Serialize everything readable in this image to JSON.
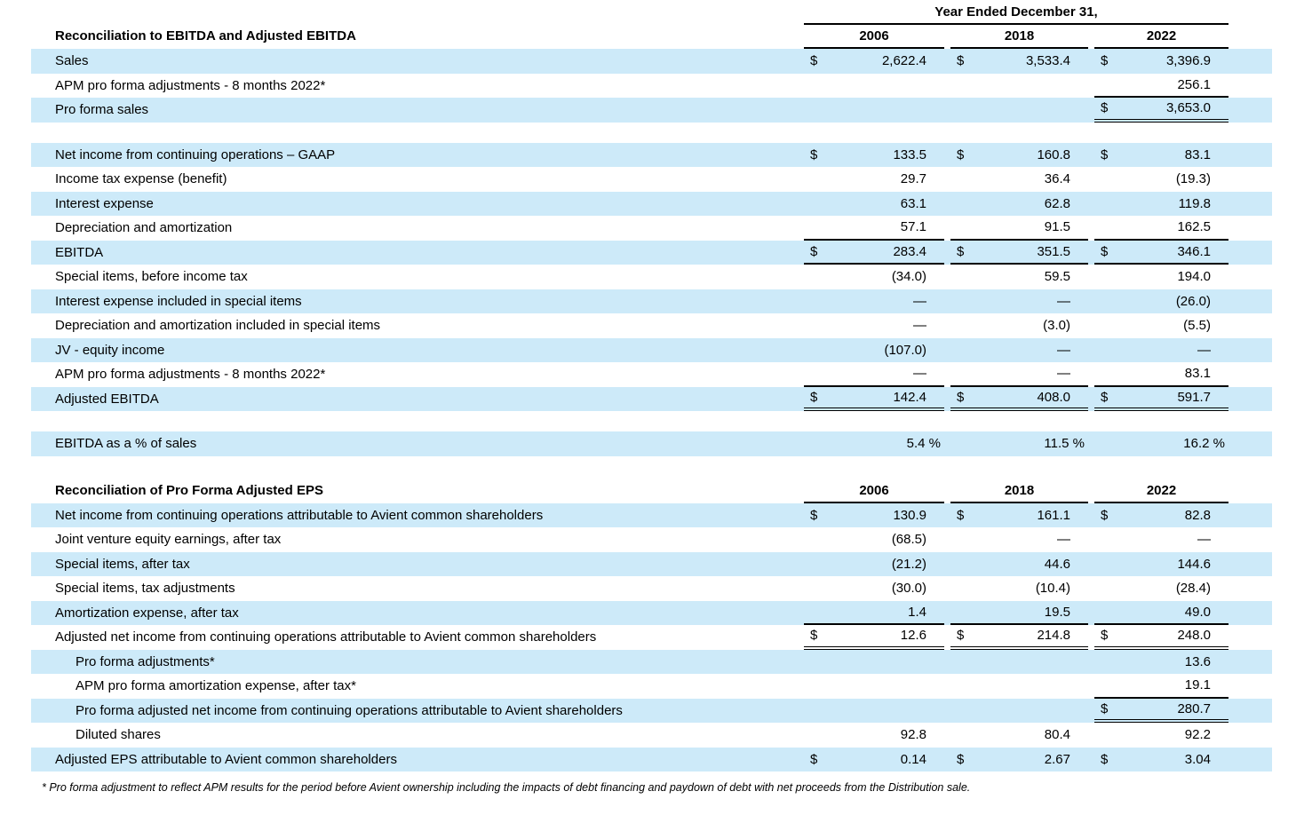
{
  "header": {
    "period_title": "Year Ended December 31,",
    "years": [
      "2006",
      "2018",
      "2022"
    ]
  },
  "section1": {
    "title": "Reconciliation to EBITDA and Adjusted EBITDA",
    "rows": [
      {
        "label": "Sales",
        "d0": "$",
        "v0": "2,622.4",
        "d1": "$",
        "v1": "3,533.4",
        "d2": "$",
        "v2": "3,396.9"
      },
      {
        "label": "APM pro forma adjustments - 8 months 2022*",
        "v2": "256.1"
      },
      {
        "label": "Pro forma sales",
        "d2": "$",
        "v2": "3,653.0"
      },
      {
        "label": "Net income from continuing operations – GAAP",
        "d0": "$",
        "v0": "133.5",
        "d1": "$",
        "v1": "160.8",
        "d2": "$",
        "v2": "83.1"
      },
      {
        "label": "Income tax expense (benefit)",
        "v0": "29.7",
        "v1": "36.4",
        "v2": "(19.3)"
      },
      {
        "label": "Interest expense",
        "v0": "63.1",
        "v1": "62.8",
        "v2": "119.8"
      },
      {
        "label": "Depreciation and amortization",
        "v0": "57.1",
        "v1": "91.5",
        "v2": "162.5"
      },
      {
        "label": "EBITDA",
        "d0": "$",
        "v0": "283.4",
        "d1": "$",
        "v1": "351.5",
        "d2": "$",
        "v2": "346.1"
      },
      {
        "label": "Special items, before income tax",
        "v0": "(34.0)",
        "v1": "59.5",
        "v2": "194.0"
      },
      {
        "label": "Interest expense included in special items",
        "v0": "—",
        "v1": "—",
        "v2": "(26.0)"
      },
      {
        "label": "Depreciation and amortization included in special items",
        "v0": "—",
        "v1": "(3.0)",
        "v2": "(5.5)"
      },
      {
        "label": "JV - equity income",
        "v0": "(107.0)",
        "v1": "—",
        "v2": "—"
      },
      {
        "label": "APM pro forma adjustments - 8 months 2022*",
        "v0": "—",
        "v1": "—",
        "v2": "83.1"
      },
      {
        "label": "Adjusted EBITDA",
        "d0": "$",
        "v0": "142.4",
        "d1": "$",
        "v1": "408.0",
        "d2": "$",
        "v2": "591.7"
      },
      {
        "label": "EBITDA as a % of sales",
        "v0": "5.4 %",
        "v1": "11.5 %",
        "v2": "16.2 %"
      }
    ]
  },
  "section2": {
    "title": "Reconciliation of Pro Forma Adjusted EPS",
    "years": [
      "2006",
      "2018",
      "2022"
    ],
    "rows": [
      {
        "label": "Net income from continuing operations attributable to Avient common shareholders",
        "d0": "$",
        "v0": "130.9",
        "d1": "$",
        "v1": "161.1",
        "d2": "$",
        "v2": "82.8"
      },
      {
        "label": "Joint venture equity earnings, after tax",
        "v0": "(68.5)",
        "v1": "—",
        "v2": "—"
      },
      {
        "label": "Special items, after tax",
        "v0": "(21.2)",
        "v1": "44.6",
        "v2": "144.6"
      },
      {
        "label": "Special items, tax adjustments",
        "v0": "(30.0)",
        "v1": "(10.4)",
        "v2": "(28.4)"
      },
      {
        "label": "Amortization expense, after tax",
        "v0": "1.4",
        "v1": "19.5",
        "v2": "49.0"
      },
      {
        "label": "Adjusted net income from continuing operations attributable to Avient common shareholders",
        "d0": "$",
        "v0": "12.6",
        "d1": "$",
        "v1": "214.8",
        "d2": "$",
        "v2": "248.0"
      },
      {
        "label": "Pro forma adjustments*",
        "v2": "13.6"
      },
      {
        "label": "APM pro forma amortization expense, after tax*",
        "v2": "19.1"
      },
      {
        "label": "Pro forma adjusted net income from continuing operations attributable to Avient shareholders",
        "d2": "$",
        "v2": "280.7"
      },
      {
        "label": "Diluted shares",
        "v0": "92.8",
        "v1": "80.4",
        "v2": "92.2"
      },
      {
        "label": "Adjusted EPS attributable to Avient common shareholders",
        "d0": "$",
        "v0": "0.14",
        "d1": "$",
        "v1": "2.67",
        "d2": "$",
        "v2": "3.04"
      }
    ]
  },
  "footnote": "* Pro forma adjustment to reflect APM results for the period before Avient ownership including the impacts of debt financing and paydown of debt with net proceeds from the Distribution sale.",
  "colors": {
    "row_shade": "#cdeaf9",
    "rule": "#000000"
  }
}
